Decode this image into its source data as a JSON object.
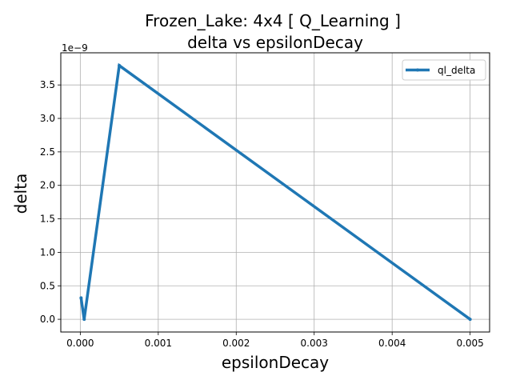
{
  "chart_data": {
    "type": "line",
    "title_line1": "Frozen_Lake: 4x4 [ Q_Learning ]",
    "title_line2": "delta vs epsilonDecay",
    "xlabel": "epsilonDecay",
    "ylabel": "delta",
    "y_offset_label": "1e−9",
    "xlim": [
      -0.00025,
      0.00525
    ],
    "ylim": [
      -0.19,
      3.98
    ],
    "x_ticks": [
      0.0,
      0.001,
      0.002,
      0.003,
      0.004,
      0.005
    ],
    "x_tick_labels": [
      "0.000",
      "0.001",
      "0.002",
      "0.003",
      "0.004",
      "0.005"
    ],
    "y_ticks": [
      0.0,
      0.5,
      1.0,
      1.5,
      2.0,
      2.5,
      3.0,
      3.5
    ],
    "y_tick_labels": [
      "0.0",
      "0.5",
      "1.0",
      "1.5",
      "2.0",
      "2.5",
      "3.0",
      "3.5"
    ],
    "grid": true,
    "legend_position": "top-right",
    "series": [
      {
        "name": "ql_delta",
        "color": "#1f77b4",
        "x": [
          1e-05,
          5e-05,
          0.0005,
          0.005
        ],
        "y": [
          0.32,
          0.0,
          3.79,
          0.0
        ]
      }
    ]
  }
}
